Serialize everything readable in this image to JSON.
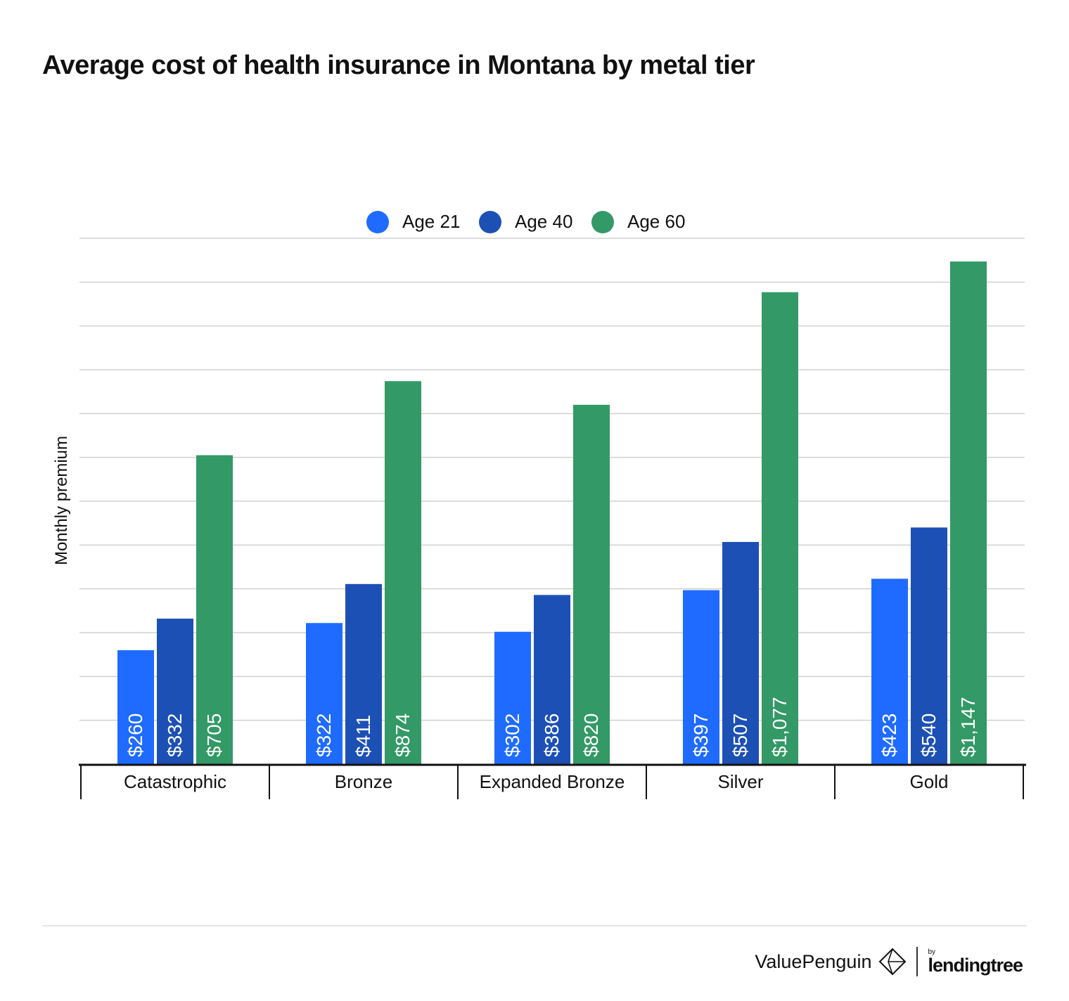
{
  "title": "Average cost of health insurance in Montana by metal tier",
  "chart_data": {
    "type": "bar",
    "title": "Average cost of health insurance in Montana by metal tier",
    "xlabel": "",
    "ylabel": "Monthly premium",
    "categories": [
      "Catastrophic",
      "Bronze",
      "Expanded Bronze",
      "Silver",
      "Gold"
    ],
    "series": [
      {
        "name": "Age 21",
        "color": "#1f6bff",
        "values": [
          260,
          322,
          302,
          397,
          423
        ],
        "labels": [
          "$260",
          "$322",
          "$302",
          "$397",
          "$423"
        ]
      },
      {
        "name": "Age 40",
        "color": "#1c50b4",
        "values": [
          332,
          411,
          386,
          507,
          540
        ],
        "labels": [
          "$332",
          "$411",
          "$386",
          "$507",
          "$540"
        ]
      },
      {
        "name": "Age 60",
        "color": "#339966",
        "values": [
          705,
          874,
          820,
          1077,
          1147
        ],
        "labels": [
          "$705",
          "$874",
          "$820",
          "$1,077",
          "$1,147"
        ]
      }
    ],
    "ylim": [
      0,
      1200
    ],
    "gridlines": 12,
    "grid": true,
    "legend_position": "top-center"
  },
  "brand": {
    "name": "ValuePenguin",
    "by": "by",
    "parent": "lendingtree",
    "logo_icon": "penguin-diamond-icon"
  }
}
